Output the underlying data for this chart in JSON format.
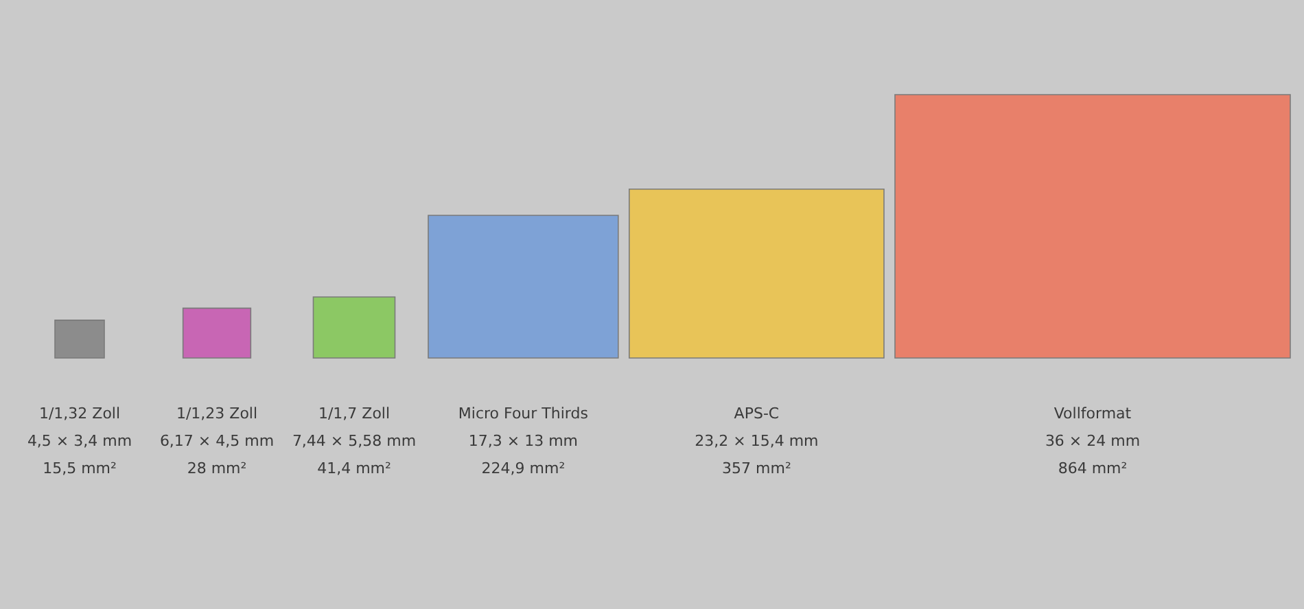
{
  "chart_data": {
    "type": "other",
    "categories": [
      "1/1,32 Zoll",
      "1/1,23 Zoll",
      "1/1,7 Zoll",
      "Micro Four Thirds",
      "APS-C",
      "Vollformat"
    ],
    "series": [
      {
        "values": [
          4.5,
          6.17,
          7.44,
          17.3,
          23.2,
          36
        ],
        "value_labels": [
          "4,5 × 3,4 mm",
          "6,17 × 4,5 mm",
          "7,44 × 5,58 mm",
          "17,3 × 13 mm",
          "23,2 × 15,4 mm",
          "36 × 24 mm"
        ]
      }
    ],
    "values": [
      15.5,
      28,
      41.4,
      224.9,
      357,
      864
    ],
    "value_labels": [
      "15,5 mm²",
      "28 mm²",
      "41,4 mm²",
      "224,9 mm²",
      "357 mm²",
      "864 mm²"
    ],
    "colors": [
      "#8c8c8c",
      "#c866b4",
      "#8cc864",
      "#7ea2d6",
      "#e8c458",
      "#e8806a"
    ]
  }
}
